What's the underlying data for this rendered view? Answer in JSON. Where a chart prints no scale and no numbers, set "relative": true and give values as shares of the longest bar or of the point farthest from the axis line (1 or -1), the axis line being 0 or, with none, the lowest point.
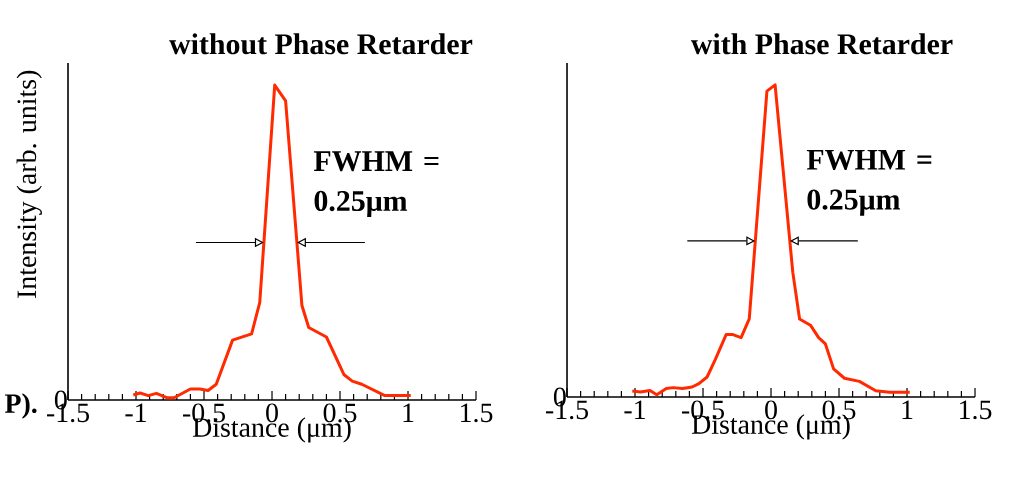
{
  "chart_data": [
    {
      "type": "line",
      "title": "without Phase Retarder",
      "xlabel": "Distance (μm)",
      "ylabel": "Intensity (arb. units)",
      "relative": true,
      "xlim": [
        -1.5,
        1.5
      ],
      "xticks": [
        -1.5,
        -1,
        -0.5,
        0,
        0.5,
        1,
        1.5
      ],
      "x": [
        -1.02,
        -0.97,
        -0.91,
        -0.85,
        -0.77,
        -0.72,
        -0.6,
        -0.53,
        -0.47,
        -0.41,
        -0.29,
        -0.15,
        -0.09,
        0.02,
        0.1,
        0.22,
        0.27,
        0.4,
        0.53,
        0.59,
        0.66,
        0.83,
        1.02
      ],
      "series": [
        {
          "color": "#ff2a00",
          "values": [
            0.016,
            0.022,
            0.014,
            0.021,
            0.007,
            0.007,
            0.035,
            0.035,
            0.03,
            0.05,
            0.19,
            0.21,
            0.31,
            1.0,
            0.95,
            0.3,
            0.23,
            0.2,
            0.08,
            0.06,
            0.05,
            0.014,
            0.014
          ]
        }
      ],
      "annotations": [
        "FWHM = 0.25μm",
        "0",
        "P)."
      ]
    },
    {
      "type": "line",
      "title": "with Phase Retarder",
      "xlabel": "Distance (μm)",
      "relative": true,
      "xlim": [
        -1.5,
        1.5
      ],
      "xticks": [
        -1.5,
        -1,
        -0.5,
        0,
        0.5,
        1,
        1.5
      ],
      "x": [
        -1.02,
        -0.96,
        -0.89,
        -0.84,
        -0.77,
        -0.72,
        -0.65,
        -0.58,
        -0.53,
        -0.47,
        -0.41,
        -0.33,
        -0.28,
        -0.22,
        -0.16,
        -0.03,
        0.03,
        0.16,
        0.21,
        0.29,
        0.35,
        0.4,
        0.46,
        0.54,
        0.65,
        0.77,
        0.87,
        1.02
      ],
      "series": [
        {
          "color": "#ff2a00",
          "values": [
            0.019,
            0.016,
            0.021,
            0.007,
            0.027,
            0.03,
            0.027,
            0.032,
            0.043,
            0.064,
            0.12,
            0.2,
            0.2,
            0.19,
            0.25,
            0.98,
            1.0,
            0.4,
            0.25,
            0.23,
            0.19,
            0.17,
            0.09,
            0.06,
            0.05,
            0.02,
            0.015,
            0.015
          ]
        }
      ],
      "annotations": [
        "FWHM = 0.25μm",
        "0"
      ]
    }
  ]
}
